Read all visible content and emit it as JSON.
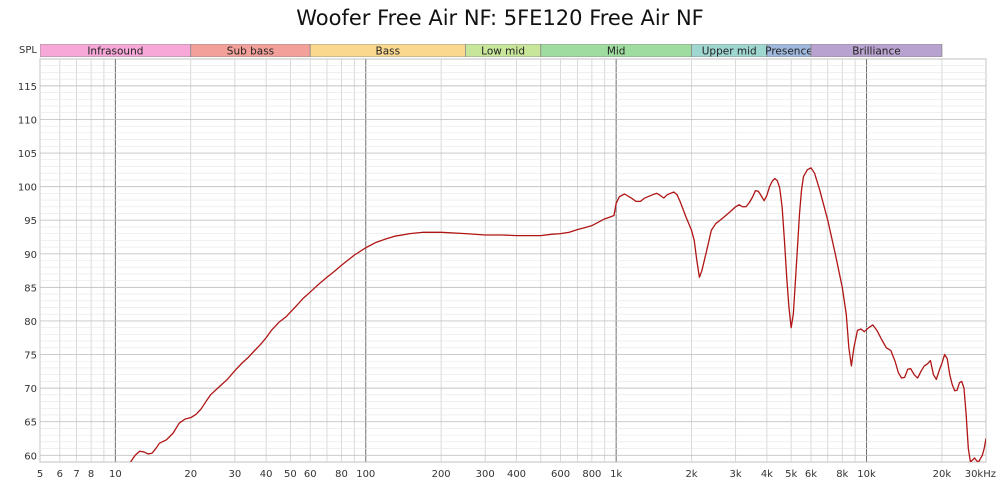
{
  "title": "Woofer Free Air NF: 5FE120 Free Air NF",
  "chart_data": {
    "type": "line",
    "title": "Woofer Free Air NF: 5FE120 Free Air NF",
    "ylabel": "SPL",
    "xscale": "log",
    "xlim": [
      5,
      30000
    ],
    "ylim": [
      59,
      119
    ],
    "grid": true,
    "x_tick_labels": [
      {
        "value": 5,
        "label": "5"
      },
      {
        "value": 6,
        "label": "6"
      },
      {
        "value": 7,
        "label": "7"
      },
      {
        "value": 8,
        "label": "8"
      },
      {
        "value": 10,
        "label": "10"
      },
      {
        "value": 20,
        "label": "20"
      },
      {
        "value": 30,
        "label": "30"
      },
      {
        "value": 40,
        "label": "40"
      },
      {
        "value": 50,
        "label": "50"
      },
      {
        "value": 60,
        "label": "60"
      },
      {
        "value": 80,
        "label": "80"
      },
      {
        "value": 100,
        "label": "100"
      },
      {
        "value": 200,
        "label": "200"
      },
      {
        "value": 300,
        "label": "300"
      },
      {
        "value": 400,
        "label": "400"
      },
      {
        "value": 600,
        "label": "600"
      },
      {
        "value": 800,
        "label": "800"
      },
      {
        "value": 1000,
        "label": "1k"
      },
      {
        "value": 2000,
        "label": "2k"
      },
      {
        "value": 3000,
        "label": "3k"
      },
      {
        "value": 4000,
        "label": "4k"
      },
      {
        "value": 5000,
        "label": "5k"
      },
      {
        "value": 6000,
        "label": "6k"
      },
      {
        "value": 8000,
        "label": "8k"
      },
      {
        "value": 10000,
        "label": "10k"
      },
      {
        "value": 20000,
        "label": "20k"
      },
      {
        "value": 30000,
        "label": "30kHz"
      }
    ],
    "y_ticks": [
      60,
      65,
      70,
      75,
      80,
      85,
      90,
      95,
      100,
      105,
      110,
      115
    ],
    "bands": [
      {
        "label": "Infrasound",
        "from": 5,
        "to": 20,
        "color": "#f7a8d8"
      },
      {
        "label": "Sub bass",
        "from": 20,
        "to": 60,
        "color": "#f3a09a"
      },
      {
        "label": "Bass",
        "from": 60,
        "to": 250,
        "color": "#fad98f"
      },
      {
        "label": "Low mid",
        "from": 250,
        "to": 500,
        "color": "#c8e69a"
      },
      {
        "label": "Mid",
        "from": 500,
        "to": 2000,
        "color": "#9fdc9f"
      },
      {
        "label": "Upper mid",
        "from": 2000,
        "to": 4000,
        "color": "#9fd6d0"
      },
      {
        "label": "Presence",
        "from": 4000,
        "to": 6000,
        "color": "#9fb8dd"
      },
      {
        "label": "Brilliance",
        "from": 6000,
        "to": 20000,
        "color": "#b8a2cf"
      }
    ],
    "series": [
      {
        "color": "#b01515",
        "points": [
          [
            11.5,
            59
          ],
          [
            12,
            60
          ],
          [
            12.5,
            60.6
          ],
          [
            13,
            60.5
          ],
          [
            13.5,
            60.2
          ],
          [
            14,
            60.3
          ],
          [
            14.5,
            61
          ],
          [
            15,
            61.8
          ],
          [
            16,
            62.3
          ],
          [
            17,
            63.3
          ],
          [
            18,
            64.8
          ],
          [
            19,
            65.4
          ],
          [
            20,
            65.6
          ],
          [
            21,
            66.1
          ],
          [
            22,
            66.9
          ],
          [
            23,
            68
          ],
          [
            24,
            69
          ],
          [
            26,
            70.2
          ],
          [
            28,
            71.3
          ],
          [
            30,
            72.6
          ],
          [
            32,
            73.7
          ],
          [
            34,
            74.6
          ],
          [
            36,
            75.6
          ],
          [
            38,
            76.5
          ],
          [
            40,
            77.5
          ],
          [
            42,
            78.6
          ],
          [
            45,
            79.8
          ],
          [
            48,
            80.6
          ],
          [
            50,
            81.3
          ],
          [
            53,
            82.3
          ],
          [
            56,
            83.3
          ],
          [
            60,
            84.3
          ],
          [
            65,
            85.5
          ],
          [
            70,
            86.5
          ],
          [
            75,
            87.4
          ],
          [
            80,
            88.3
          ],
          [
            90,
            89.8
          ],
          [
            100,
            90.9
          ],
          [
            110,
            91.7
          ],
          [
            120,
            92.2
          ],
          [
            130,
            92.6
          ],
          [
            150,
            93.0
          ],
          [
            170,
            93.2
          ],
          [
            200,
            93.2
          ],
          [
            250,
            93.0
          ],
          [
            300,
            92.8
          ],
          [
            350,
            92.8
          ],
          [
            400,
            92.7
          ],
          [
            450,
            92.7
          ],
          [
            500,
            92.7
          ],
          [
            550,
            92.9
          ],
          [
            600,
            93.0
          ],
          [
            650,
            93.2
          ],
          [
            700,
            93.6
          ],
          [
            750,
            93.9
          ],
          [
            800,
            94.2
          ],
          [
            850,
            94.7
          ],
          [
            900,
            95.2
          ],
          [
            950,
            95.5
          ],
          [
            980,
            95.7
          ],
          [
            1000,
            97.5
          ],
          [
            1030,
            98.5
          ],
          [
            1080,
            98.9
          ],
          [
            1150,
            98.3
          ],
          [
            1200,
            97.8
          ],
          [
            1250,
            97.8
          ],
          [
            1300,
            98.3
          ],
          [
            1400,
            98.8
          ],
          [
            1450,
            99.0
          ],
          [
            1500,
            98.7
          ],
          [
            1550,
            98.3
          ],
          [
            1600,
            98.8
          ],
          [
            1700,
            99.2
          ],
          [
            1750,
            98.8
          ],
          [
            1800,
            97.8
          ],
          [
            1900,
            95.5
          ],
          [
            2000,
            93.5
          ],
          [
            2050,
            92
          ],
          [
            2100,
            89
          ],
          [
            2150,
            86.5
          ],
          [
            2200,
            87.5
          ],
          [
            2300,
            90.5
          ],
          [
            2400,
            93.5
          ],
          [
            2500,
            94.5
          ],
          [
            2600,
            95.0
          ],
          [
            2700,
            95.5
          ],
          [
            2800,
            96.0
          ],
          [
            2900,
            96.5
          ],
          [
            3000,
            97.0
          ],
          [
            3100,
            97.3
          ],
          [
            3200,
            97.0
          ],
          [
            3300,
            97.0
          ],
          [
            3400,
            97.6
          ],
          [
            3500,
            98.4
          ],
          [
            3600,
            99.4
          ],
          [
            3700,
            99.3
          ],
          [
            3800,
            98.6
          ],
          [
            3900,
            97.9
          ],
          [
            4000,
            98.7
          ],
          [
            4100,
            100.0
          ],
          [
            4200,
            100.8
          ],
          [
            4300,
            101.2
          ],
          [
            4400,
            100.9
          ],
          [
            4500,
            99.8
          ],
          [
            4600,
            97.0
          ],
          [
            4700,
            92.0
          ],
          [
            4800,
            86.5
          ],
          [
            4900,
            82.0
          ],
          [
            5000,
            79.0
          ],
          [
            5100,
            81.0
          ],
          [
            5200,
            86.0
          ],
          [
            5300,
            91.0
          ],
          [
            5400,
            96.0
          ],
          [
            5500,
            99.5
          ],
          [
            5600,
            101.5
          ],
          [
            5800,
            102.5
          ],
          [
            6000,
            102.8
          ],
          [
            6200,
            102.0
          ],
          [
            6500,
            99.5
          ],
          [
            7000,
            95.0
          ],
          [
            7500,
            90.0
          ],
          [
            8000,
            85.0
          ],
          [
            8300,
            81.0
          ],
          [
            8500,
            76.0
          ],
          [
            8700,
            73.3
          ],
          [
            8900,
            76.0
          ],
          [
            9200,
            78.6
          ],
          [
            9500,
            78.8
          ],
          [
            9800,
            78.4
          ],
          [
            10200,
            79.0
          ],
          [
            10600,
            79.4
          ],
          [
            11000,
            78.6
          ],
          [
            11500,
            77.2
          ],
          [
            12000,
            76.0
          ],
          [
            12500,
            75.6
          ],
          [
            13000,
            74.0
          ],
          [
            13400,
            72.3
          ],
          [
            13800,
            71.5
          ],
          [
            14200,
            71.6
          ],
          [
            14600,
            72.8
          ],
          [
            15000,
            72.9
          ],
          [
            15500,
            72.0
          ],
          [
            16000,
            71.5
          ],
          [
            16500,
            72.5
          ],
          [
            17000,
            73.3
          ],
          [
            17500,
            73.6
          ],
          [
            18000,
            74.1
          ],
          [
            18500,
            72.0
          ],
          [
            19000,
            71.3
          ],
          [
            19500,
            72.6
          ],
          [
            20000,
            73.7
          ],
          [
            20500,
            75.0
          ],
          [
            21000,
            74.4
          ],
          [
            21500,
            72.0
          ],
          [
            22000,
            70.5
          ],
          [
            22500,
            69.6
          ],
          [
            23000,
            69.7
          ],
          [
            23500,
            70.8
          ],
          [
            24000,
            71.0
          ],
          [
            24500,
            70.0
          ],
          [
            25000,
            66.0
          ],
          [
            25500,
            61.0
          ],
          [
            26000,
            59
          ],
          [
            26500,
            59.3
          ],
          [
            27000,
            59.6
          ],
          [
            27500,
            59.2
          ],
          [
            28000,
            59
          ],
          [
            28500,
            59.5
          ],
          [
            29000,
            60.0
          ],
          [
            29500,
            61.0
          ],
          [
            30000,
            62.5
          ]
        ]
      }
    ]
  }
}
